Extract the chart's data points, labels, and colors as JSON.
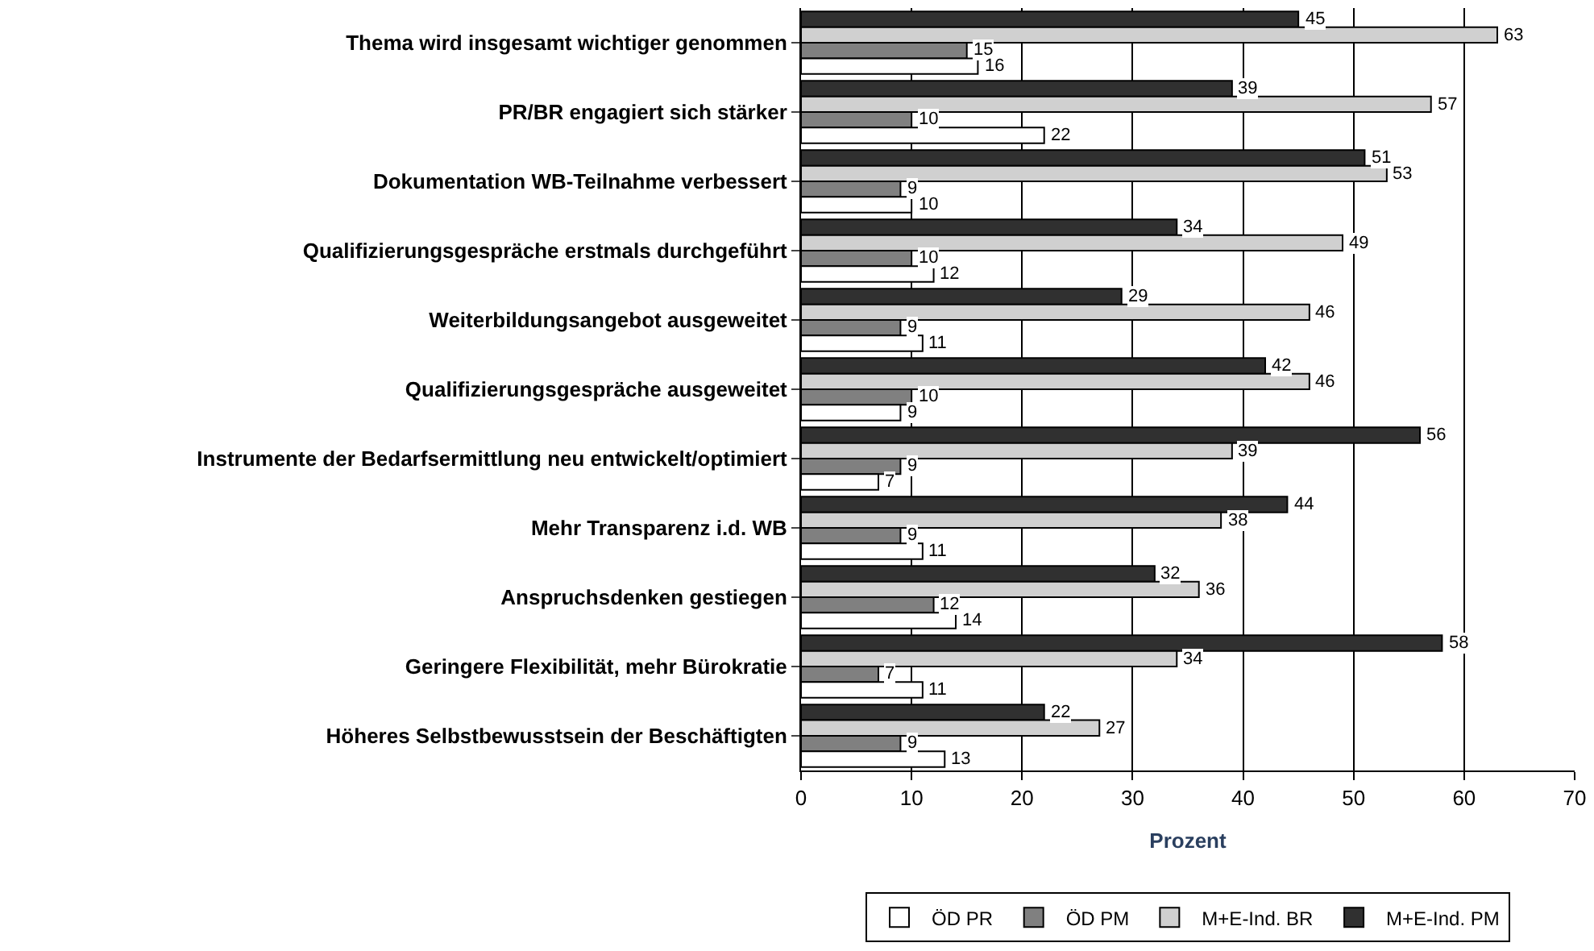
{
  "chart_data": {
    "type": "bar",
    "orientation": "horizontal",
    "xlabel": "Prozent",
    "categories": [
      "Thema wird insgesamt wichtiger genommen",
      "PR/BR engagiert sich stärker",
      "Dokumentation WB-Teilnahme verbessert",
      "Qualifizierungsgespräche erstmals durchgeführt",
      "Weiterbildungsangebot ausgeweitet",
      "Qualifizierungsgespräche ausgeweitet",
      "Instrumente der Bedarfsermittlung neu entwickelt/optimiert",
      "Mehr Transparenz i.d. WB",
      "Anspruchsdenken gestiegen",
      "Geringere Flexibilität, mehr Bürokratie",
      "Höheres Selbstbewusstsein der Beschäftigten"
    ],
    "series": [
      {
        "name": "ÖD PR",
        "color": "#ffffff",
        "values": [
          16,
          22,
          10,
          12,
          11,
          9,
          7,
          11,
          14,
          11,
          13
        ]
      },
      {
        "name": "ÖD PM",
        "color": "#808080",
        "values": [
          15,
          10,
          9,
          10,
          9,
          10,
          9,
          9,
          12,
          7,
          9
        ]
      },
      {
        "name": "M+E-Ind. BR",
        "color": "#d0d0d0",
        "values": [
          63,
          57,
          53,
          49,
          46,
          46,
          39,
          38,
          36,
          34,
          27
        ]
      },
      {
        "name": "M+E-Ind. PM",
        "color": "#303030",
        "values": [
          45,
          39,
          51,
          34,
          29,
          42,
          56,
          44,
          32,
          58,
          22
        ]
      }
    ],
    "xlim": [
      0,
      70
    ],
    "xticks": [
      0,
      10,
      20,
      30,
      40,
      50,
      60,
      70
    ],
    "grid": "x",
    "legend": "bottom",
    "data_labels": true
  }
}
